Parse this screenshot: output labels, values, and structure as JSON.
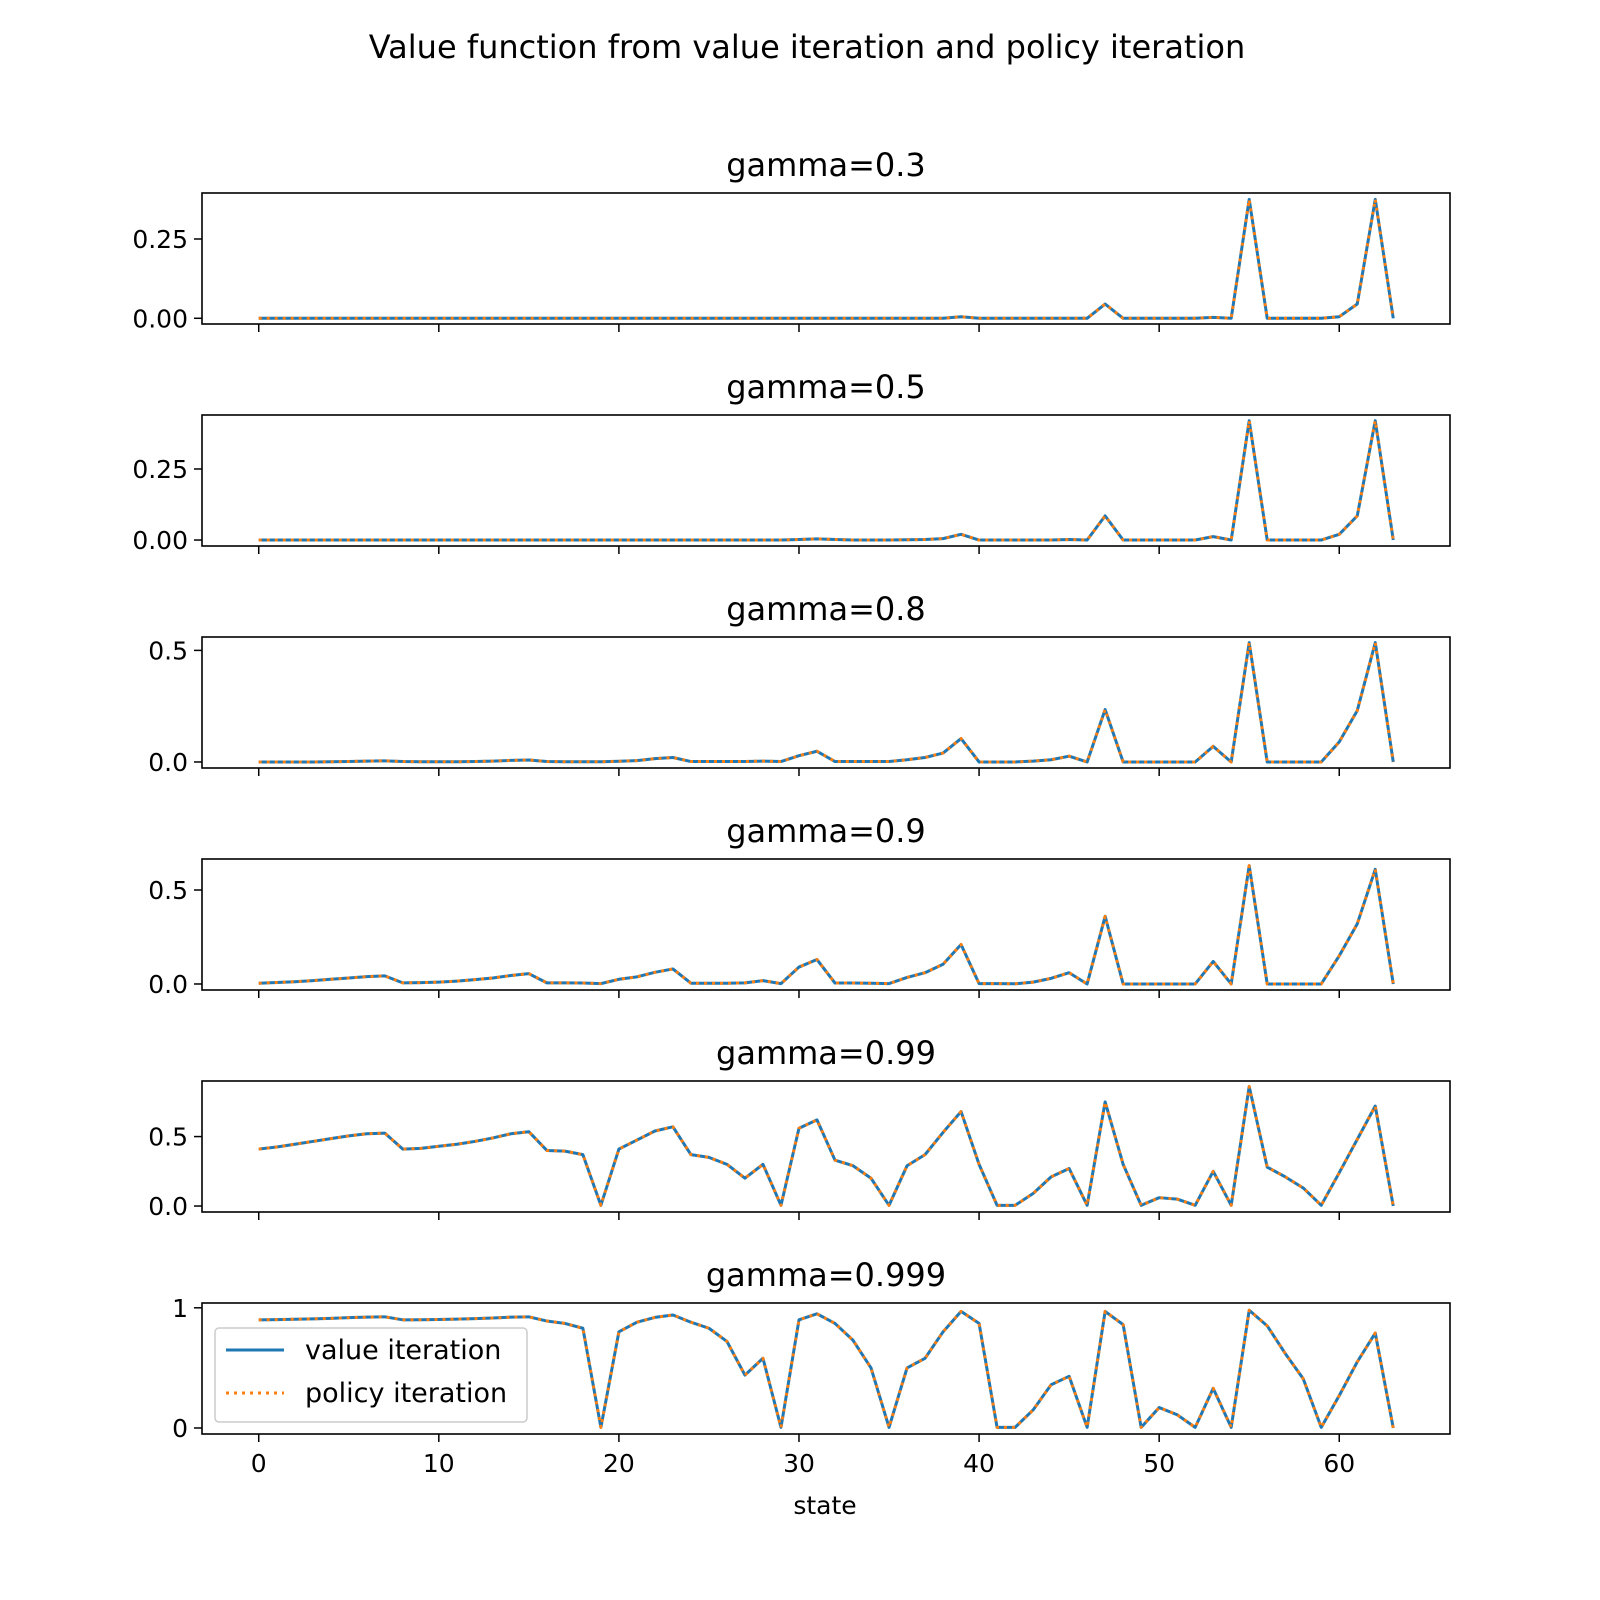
{
  "figure": {
    "suptitle": "Value function from value iteration and policy iteration",
    "xlabel": "state",
    "x_ticks": [
      "0",
      "10",
      "20",
      "30",
      "40",
      "50",
      "60"
    ]
  },
  "legend": {
    "placement": "lower-left",
    "entries": [
      "value iteration",
      "policy iteration"
    ]
  },
  "colors": {
    "value_iteration": "#1f77b4",
    "policy_iteration": "#ff7f0e"
  },
  "chart_data": [
    {
      "type": "line",
      "title": "gamma=0.3",
      "xlim": [
        -3.15,
        66.15
      ],
      "ylim": [
        -0.018,
        0.395
      ],
      "yticks": [
        0,
        0.25
      ],
      "ytick_labels": [
        "0.00",
        "0.25"
      ],
      "series": [
        {
          "name": "value iteration",
          "values": [
            0,
            0,
            0,
            0,
            0,
            0,
            0,
            0,
            0,
            0,
            0,
            0,
            0,
            0,
            0,
            0,
            0,
            0,
            0,
            0,
            0,
            0,
            0,
            0,
            0,
            0,
            0,
            0,
            0,
            0,
            0,
            0,
            0,
            0,
            0,
            0,
            0,
            0,
            0,
            0.005,
            0,
            0,
            0,
            0,
            0,
            0,
            0,
            0.045,
            0,
            0,
            0,
            0,
            0,
            0.003,
            0,
            0.375,
            0,
            0,
            0,
            0,
            0.005,
            0.045,
            0.375,
            0
          ]
        },
        {
          "name": "policy iteration",
          "values": [
            0,
            0,
            0,
            0,
            0,
            0,
            0,
            0,
            0,
            0,
            0,
            0,
            0,
            0,
            0,
            0,
            0,
            0,
            0,
            0,
            0,
            0,
            0,
            0,
            0,
            0,
            0,
            0,
            0,
            0,
            0,
            0,
            0,
            0,
            0,
            0,
            0,
            0,
            0,
            0.005,
            0,
            0,
            0,
            0,
            0,
            0,
            0,
            0.045,
            0,
            0,
            0,
            0,
            0,
            0.003,
            0,
            0.375,
            0,
            0,
            0,
            0,
            0.005,
            0.045,
            0.375,
            0
          ]
        }
      ]
    },
    {
      "type": "line",
      "title": "gamma=0.5",
      "xlim": [
        -3.15,
        66.15
      ],
      "ylim": [
        -0.021,
        0.44
      ],
      "yticks": [
        0,
        0.25
      ],
      "ytick_labels": [
        "0.00",
        "0.25"
      ],
      "series": [
        {
          "name": "value iteration",
          "values": [
            0,
            0,
            0,
            0,
            0,
            0,
            0,
            0,
            0,
            0,
            0,
            0,
            0,
            0,
            0,
            0,
            0,
            0,
            0,
            0,
            0,
            0,
            0,
            0,
            0,
            0,
            0,
            0,
            0,
            0,
            0.002,
            0.004,
            0.002,
            0,
            0,
            0,
            0.001,
            0.002,
            0.005,
            0.02,
            0,
            0,
            0,
            0,
            0,
            0.002,
            0,
            0.085,
            0,
            0,
            0,
            0,
            0,
            0.012,
            0,
            0.42,
            0,
            0,
            0,
            0,
            0.02,
            0.085,
            0.42,
            0
          ]
        },
        {
          "name": "policy iteration",
          "values": [
            0,
            0,
            0,
            0,
            0,
            0,
            0,
            0,
            0,
            0,
            0,
            0,
            0,
            0,
            0,
            0,
            0,
            0,
            0,
            0,
            0,
            0,
            0,
            0,
            0,
            0,
            0,
            0,
            0,
            0,
            0.002,
            0.004,
            0.002,
            0,
            0,
            0,
            0.001,
            0.002,
            0.005,
            0.02,
            0,
            0,
            0,
            0,
            0,
            0.002,
            0,
            0.085,
            0,
            0,
            0,
            0,
            0,
            0.012,
            0,
            0.42,
            0,
            0,
            0,
            0,
            0.02,
            0.085,
            0.42,
            0
          ]
        }
      ]
    },
    {
      "type": "line",
      "title": "gamma=0.8",
      "xlim": [
        -3.15,
        66.15
      ],
      "ylim": [
        -0.027,
        0.56
      ],
      "yticks": [
        0,
        0.5
      ],
      "ytick_labels": [
        "0.0",
        "0.5"
      ],
      "series": [
        {
          "name": "value iteration",
          "values": [
            0,
            0,
            0,
            0,
            0.001,
            0.002,
            0.004,
            0.005,
            0.002,
            0.001,
            0.001,
            0.001,
            0.002,
            0.004,
            0.007,
            0.009,
            0.002,
            0.001,
            0.001,
            0.001,
            0.003,
            0.006,
            0.015,
            0.02,
            0.002,
            0.002,
            0.002,
            0.002,
            0.004,
            0.002,
            0.028,
            0.048,
            0.002,
            0.002,
            0.002,
            0.002,
            0.01,
            0.02,
            0.04,
            0.105,
            0,
            0,
            0,
            0.004,
            0.01,
            0.026,
            0,
            0.235,
            0,
            0,
            0,
            0,
            0,
            0.07,
            0,
            0.535,
            0,
            0,
            0,
            0,
            0.09,
            0.23,
            0.535,
            0
          ]
        },
        {
          "name": "policy iteration",
          "values": [
            0,
            0,
            0,
            0,
            0.001,
            0.002,
            0.004,
            0.005,
            0.002,
            0.001,
            0.001,
            0.001,
            0.002,
            0.004,
            0.007,
            0.009,
            0.002,
            0.001,
            0.001,
            0.001,
            0.003,
            0.006,
            0.015,
            0.02,
            0.002,
            0.002,
            0.002,
            0.002,
            0.004,
            0.002,
            0.028,
            0.048,
            0.002,
            0.002,
            0.002,
            0.002,
            0.01,
            0.02,
            0.04,
            0.105,
            0,
            0,
            0,
            0.004,
            0.01,
            0.026,
            0,
            0.235,
            0,
            0,
            0,
            0,
            0,
            0.07,
            0,
            0.535,
            0,
            0,
            0,
            0,
            0.09,
            0.23,
            0.535,
            0
          ]
        }
      ]
    },
    {
      "type": "line",
      "title": "gamma=0.9",
      "xlim": [
        -3.15,
        66.15
      ],
      "ylim": [
        -0.032,
        0.665
      ],
      "yticks": [
        0,
        0.5
      ],
      "ytick_labels": [
        "0.0",
        "0.5"
      ],
      "series": [
        {
          "name": "value iteration",
          "values": [
            0.004,
            0.008,
            0.012,
            0.018,
            0.025,
            0.032,
            0.039,
            0.043,
            0.006,
            0.007,
            0.01,
            0.015,
            0.023,
            0.032,
            0.045,
            0.055,
            0.006,
            0.006,
            0.005,
            0.002,
            0.025,
            0.038,
            0.062,
            0.08,
            0.004,
            0.004,
            0.004,
            0.006,
            0.018,
            0.002,
            0.09,
            0.13,
            0.005,
            0.005,
            0.004,
            0.002,
            0.035,
            0.06,
            0.105,
            0.21,
            0.002,
            0.002,
            0.001,
            0.01,
            0.03,
            0.06,
            0,
            0.36,
            0,
            0,
            0,
            0,
            0,
            0.12,
            0,
            0.63,
            0,
            0,
            0,
            0,
            0.15,
            0.32,
            0.61,
            0
          ]
        },
        {
          "name": "policy iteration",
          "values": [
            0.004,
            0.008,
            0.012,
            0.018,
            0.025,
            0.032,
            0.039,
            0.043,
            0.006,
            0.007,
            0.01,
            0.015,
            0.023,
            0.032,
            0.045,
            0.055,
            0.006,
            0.006,
            0.005,
            0.002,
            0.025,
            0.038,
            0.062,
            0.08,
            0.004,
            0.004,
            0.004,
            0.006,
            0.018,
            0.002,
            0.09,
            0.13,
            0.005,
            0.005,
            0.004,
            0.002,
            0.035,
            0.06,
            0.105,
            0.21,
            0.002,
            0.002,
            0.001,
            0.01,
            0.03,
            0.06,
            0,
            0.36,
            0,
            0,
            0,
            0,
            0,
            0.12,
            0,
            0.63,
            0,
            0,
            0,
            0,
            0.15,
            0.32,
            0.61,
            0
          ]
        }
      ]
    },
    {
      "type": "line",
      "title": "gamma=0.99",
      "xlim": [
        -3.15,
        66.15
      ],
      "ylim": [
        -0.043,
        0.9
      ],
      "yticks": [
        0,
        0.5
      ],
      "ytick_labels": [
        "0.0",
        "0.5"
      ],
      "series": [
        {
          "name": "value iteration",
          "values": [
            0.41,
            0.425,
            0.445,
            0.465,
            0.485,
            0.505,
            0.52,
            0.525,
            0.41,
            0.415,
            0.43,
            0.445,
            0.465,
            0.49,
            0.52,
            0.535,
            0.4,
            0.395,
            0.37,
            0.005,
            0.41,
            0.475,
            0.54,
            0.57,
            0.37,
            0.35,
            0.3,
            0.2,
            0.3,
            0.005,
            0.56,
            0.62,
            0.33,
            0.29,
            0.2,
            0.005,
            0.29,
            0.37,
            0.53,
            0.68,
            0.3,
            0.005,
            0.005,
            0.09,
            0.21,
            0.27,
            0.005,
            0.75,
            0.3,
            0.005,
            0.06,
            0.05,
            0.005,
            0.25,
            0.005,
            0.86,
            0.28,
            0.21,
            0.13,
            0.005,
            0.24,
            0.48,
            0.72,
            0
          ]
        },
        {
          "name": "policy iteration",
          "values": [
            0.41,
            0.425,
            0.445,
            0.465,
            0.485,
            0.505,
            0.52,
            0.525,
            0.41,
            0.415,
            0.43,
            0.445,
            0.465,
            0.49,
            0.52,
            0.535,
            0.4,
            0.395,
            0.37,
            0.005,
            0.41,
            0.475,
            0.54,
            0.57,
            0.37,
            0.35,
            0.3,
            0.2,
            0.3,
            0.005,
            0.56,
            0.62,
            0.33,
            0.29,
            0.2,
            0.005,
            0.29,
            0.37,
            0.53,
            0.68,
            0.3,
            0.005,
            0.005,
            0.09,
            0.21,
            0.27,
            0.005,
            0.75,
            0.3,
            0.005,
            0.06,
            0.05,
            0.005,
            0.25,
            0.005,
            0.86,
            0.28,
            0.21,
            0.13,
            0.005,
            0.24,
            0.48,
            0.72,
            0
          ]
        }
      ]
    },
    {
      "type": "line",
      "title": "gamma=0.999",
      "xlim": [
        -3.15,
        66.15
      ],
      "ylim": [
        -0.05,
        1.04
      ],
      "yticks": [
        0,
        1
      ],
      "ytick_labels": [
        "0",
        "1"
      ],
      "series": [
        {
          "name": "value iteration",
          "values": [
            0.9,
            0.902,
            0.905,
            0.908,
            0.912,
            0.918,
            0.922,
            0.925,
            0.9,
            0.901,
            0.903,
            0.906,
            0.91,
            0.915,
            0.922,
            0.925,
            0.89,
            0.87,
            0.83,
            0.005,
            0.8,
            0.88,
            0.92,
            0.94,
            0.88,
            0.83,
            0.72,
            0.44,
            0.58,
            0.005,
            0.9,
            0.95,
            0.87,
            0.73,
            0.5,
            0.005,
            0.5,
            0.58,
            0.8,
            0.97,
            0.87,
            0.005,
            0.005,
            0.15,
            0.36,
            0.43,
            0.005,
            0.97,
            0.86,
            0.005,
            0.17,
            0.11,
            0.005,
            0.33,
            0.005,
            0.98,
            0.85,
            0.62,
            0.41,
            0.005,
            0.27,
            0.55,
            0.79,
            0
          ]
        },
        {
          "name": "policy iteration",
          "values": [
            0.9,
            0.902,
            0.905,
            0.908,
            0.912,
            0.918,
            0.922,
            0.925,
            0.9,
            0.901,
            0.903,
            0.906,
            0.91,
            0.915,
            0.922,
            0.925,
            0.89,
            0.87,
            0.83,
            0.005,
            0.8,
            0.88,
            0.92,
            0.94,
            0.88,
            0.83,
            0.72,
            0.44,
            0.58,
            0.005,
            0.9,
            0.95,
            0.87,
            0.73,
            0.5,
            0.005,
            0.5,
            0.58,
            0.8,
            0.97,
            0.87,
            0.005,
            0.005,
            0.15,
            0.36,
            0.43,
            0.005,
            0.97,
            0.86,
            0.005,
            0.17,
            0.11,
            0.005,
            0.33,
            0.005,
            0.98,
            0.85,
            0.62,
            0.41,
            0.005,
            0.27,
            0.55,
            0.79,
            0
          ]
        }
      ]
    }
  ]
}
